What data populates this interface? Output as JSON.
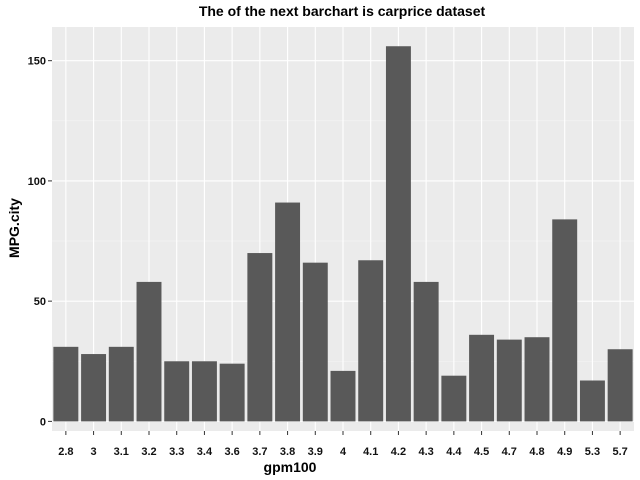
{
  "chart_data": {
    "type": "bar",
    "title": "The of the next barchart is carprice dataset",
    "xlabel": "gpm100",
    "ylabel": "MPG.city",
    "categories": [
      "2.8",
      "3",
      "3.1",
      "3.2",
      "3.3",
      "3.4",
      "3.6",
      "3.7",
      "3.8",
      "3.9",
      "4",
      "4.1",
      "4.2",
      "4.3",
      "4.4",
      "4.5",
      "4.7",
      "4.8",
      "4.9",
      "5.3",
      "5.7"
    ],
    "values": [
      31,
      28,
      31,
      58,
      25,
      25,
      24,
      70,
      91,
      66,
      21,
      67,
      156,
      58,
      19,
      36,
      34,
      35,
      84,
      17,
      30
    ],
    "ylim": [
      -4,
      164
    ],
    "yticks": [
      0,
      50,
      100,
      150
    ],
    "grid": true,
    "colors": {
      "bar": "#595959",
      "panel": "#ebebeb",
      "grid_major": "#ffffff",
      "tick": "#333333"
    }
  }
}
